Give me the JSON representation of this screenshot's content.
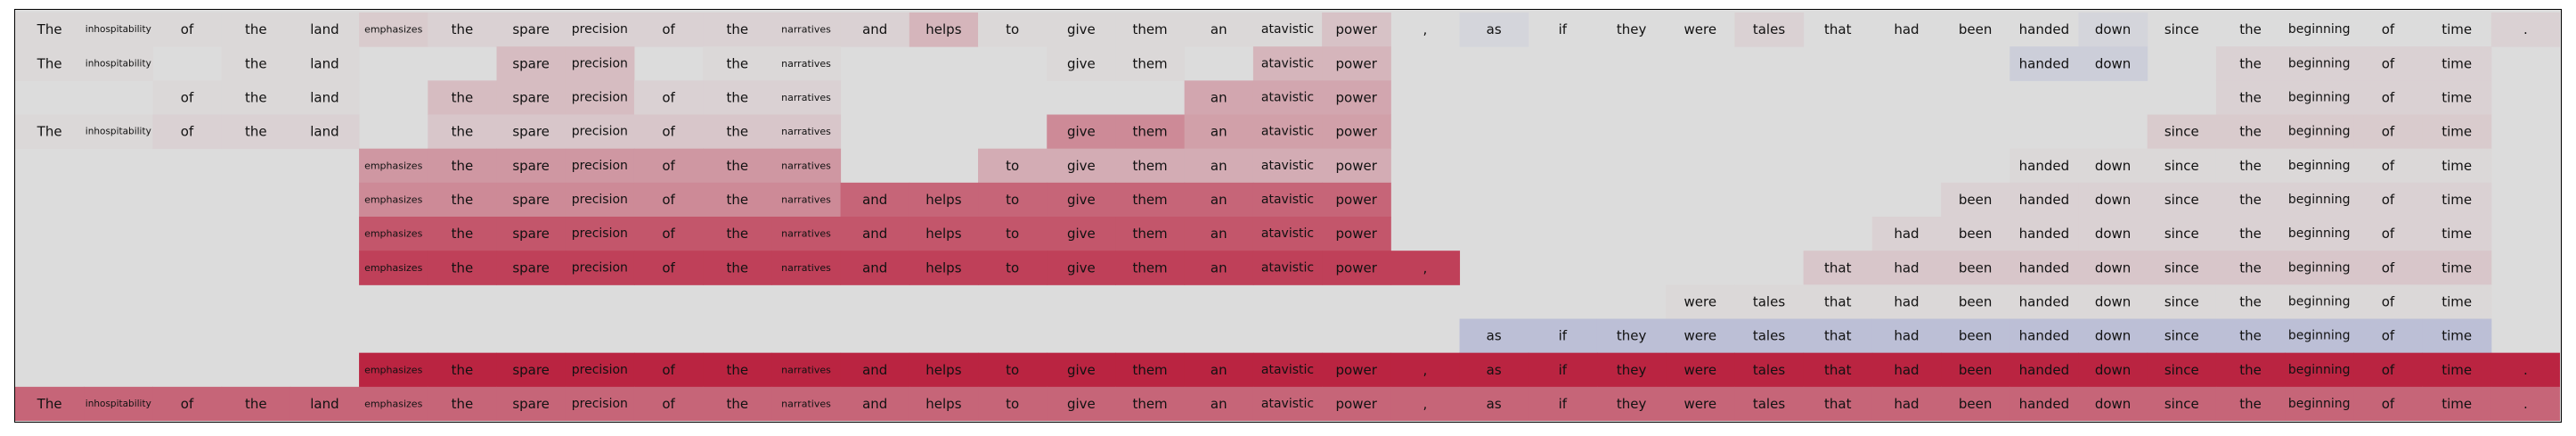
{
  "chart_data": {
    "type": "heatmap",
    "tokens": [
      "The",
      "inhospitability",
      "of",
      "the",
      "land",
      "emphasizes",
      "the",
      "spare",
      "precision",
      "of",
      "the",
      "narratives",
      "and",
      "helps",
      "to",
      "give",
      "them",
      "an",
      "atavistic",
      "power",
      ",",
      "as",
      "if",
      "they",
      "were",
      "tales",
      "that",
      "had",
      "been",
      "handed",
      "down",
      "since",
      "the",
      "beginning",
      "of",
      "time",
      "."
    ],
    "rows": [
      {
        "present": [
          1,
          1,
          1,
          1,
          1,
          1,
          1,
          1,
          1,
          1,
          1,
          1,
          1,
          1,
          1,
          1,
          1,
          1,
          1,
          1,
          1,
          1,
          1,
          1,
          1,
          1,
          1,
          1,
          1,
          1,
          1,
          1,
          1,
          1,
          1,
          1,
          1
        ],
        "values": [
          0.02,
          0.02,
          0.02,
          0.02,
          0.02,
          0.08,
          0.05,
          0.05,
          0.05,
          0.05,
          0.05,
          0.05,
          0.05,
          0.18,
          0.02,
          0.02,
          0.02,
          0.02,
          0.02,
          0.12,
          0,
          -0.05,
          0,
          0,
          0,
          0.05,
          0,
          0,
          0,
          0,
          -0.05,
          0,
          0,
          0,
          0,
          0,
          0.05
        ]
      },
      {
        "present": [
          1,
          1,
          0,
          1,
          1,
          0,
          0,
          1,
          1,
          0,
          1,
          1,
          0,
          0,
          0,
          1,
          1,
          0,
          1,
          1,
          0,
          0,
          0,
          0,
          0,
          0,
          0,
          0,
          0,
          1,
          1,
          0,
          1,
          1,
          1,
          1,
          0
        ],
        "values": [
          0.02,
          0.02,
          0,
          0.02,
          0.02,
          0,
          0,
          0.15,
          0.15,
          0,
          0.02,
          0.02,
          0,
          0,
          0,
          0.02,
          0.02,
          0,
          0.18,
          0.18,
          0,
          0,
          0,
          0,
          0,
          0,
          0,
          0,
          0,
          -0.1,
          -0.1,
          0,
          0.05,
          0.05,
          0.05,
          0.05,
          0
        ]
      },
      {
        "present": [
          0,
          0,
          1,
          1,
          1,
          0,
          1,
          1,
          1,
          1,
          1,
          1,
          0,
          0,
          0,
          0,
          0,
          1,
          1,
          1,
          0,
          0,
          0,
          0,
          0,
          0,
          0,
          0,
          0,
          0,
          0,
          0,
          1,
          1,
          1,
          1,
          0
        ],
        "values": [
          0,
          0,
          0.02,
          0.02,
          0.02,
          0,
          0.15,
          0.15,
          0.15,
          0.05,
          0.05,
          0.05,
          0,
          0,
          0,
          0,
          0,
          0.25,
          0.25,
          0.25,
          0,
          0,
          0,
          0,
          0,
          0,
          0,
          0,
          0,
          0,
          0,
          0,
          0.05,
          0.05,
          0.05,
          0.05,
          0
        ]
      },
      {
        "present": [
          1,
          1,
          1,
          1,
          1,
          0,
          1,
          1,
          1,
          1,
          1,
          1,
          0,
          0,
          0,
          1,
          1,
          1,
          1,
          1,
          0,
          0,
          0,
          0,
          0,
          0,
          0,
          0,
          0,
          0,
          0,
          1,
          1,
          1,
          1,
          1,
          0
        ],
        "values": [
          0.02,
          0.02,
          0.05,
          0.05,
          0.05,
          0,
          0.1,
          0.1,
          0.1,
          0.1,
          0.1,
          0.1,
          0,
          0,
          0,
          0.38,
          0.38,
          0.28,
          0.28,
          0.28,
          0,
          0,
          0,
          0,
          0,
          0,
          0,
          0,
          0,
          0,
          0,
          0.08,
          0.08,
          0.08,
          0.08,
          0.08,
          0
        ]
      },
      {
        "present": [
          0,
          0,
          0,
          0,
          0,
          1,
          1,
          1,
          1,
          1,
          1,
          1,
          0,
          0,
          1,
          1,
          1,
          1,
          1,
          1,
          0,
          0,
          0,
          0,
          0,
          0,
          0,
          0,
          0,
          1,
          1,
          1,
          1,
          1,
          1,
          1,
          0
        ],
        "values": [
          0,
          0,
          0,
          0,
          0,
          0.32,
          0.32,
          0.32,
          0.32,
          0.32,
          0.32,
          0.32,
          0,
          0,
          0.22,
          0.22,
          0.22,
          0.22,
          0.22,
          0.22,
          0,
          0,
          0,
          0,
          0,
          0,
          0,
          0,
          0,
          0.02,
          0.02,
          0.02,
          0.02,
          0.02,
          0.02,
          0.02,
          0
        ]
      },
      {
        "present": [
          0,
          0,
          0,
          0,
          0,
          1,
          1,
          1,
          1,
          1,
          1,
          1,
          1,
          1,
          1,
          1,
          1,
          1,
          1,
          1,
          0,
          0,
          0,
          0,
          0,
          0,
          0,
          0,
          1,
          1,
          1,
          1,
          1,
          1,
          1,
          1,
          0
        ],
        "values": [
          0,
          0,
          0,
          0,
          0,
          0.38,
          0.38,
          0.38,
          0.38,
          0.38,
          0.38,
          0.38,
          0.55,
          0.55,
          0.55,
          0.55,
          0.55,
          0.55,
          0.55,
          0.55,
          0,
          0,
          0,
          0,
          0,
          0,
          0,
          0,
          0.05,
          0.05,
          0.05,
          0.05,
          0.05,
          0.05,
          0.05,
          0.05,
          0
        ]
      },
      {
        "present": [
          0,
          0,
          0,
          0,
          0,
          1,
          1,
          1,
          1,
          1,
          1,
          1,
          1,
          1,
          1,
          1,
          1,
          1,
          1,
          1,
          0,
          0,
          0,
          0,
          0,
          0,
          0,
          1,
          1,
          1,
          1,
          1,
          1,
          1,
          1,
          1,
          0
        ],
        "values": [
          0,
          0,
          0,
          0,
          0,
          0.62,
          0.62,
          0.62,
          0.62,
          0.62,
          0.62,
          0.62,
          0.62,
          0.62,
          0.62,
          0.62,
          0.62,
          0.62,
          0.62,
          0.62,
          0,
          0,
          0,
          0,
          0,
          0,
          0,
          0.05,
          0.05,
          0.05,
          0.05,
          0.05,
          0.05,
          0.05,
          0.05,
          0.05,
          0
        ]
      },
      {
        "present": [
          0,
          0,
          0,
          0,
          0,
          1,
          1,
          1,
          1,
          1,
          1,
          1,
          1,
          1,
          1,
          1,
          1,
          1,
          1,
          1,
          1,
          0,
          0,
          0,
          0,
          0,
          1,
          1,
          1,
          1,
          1,
          1,
          1,
          1,
          1,
          1,
          0
        ],
        "values": [
          0,
          0,
          0,
          0,
          0,
          0.72,
          0.72,
          0.72,
          0.72,
          0.72,
          0.72,
          0.72,
          0.72,
          0.72,
          0.72,
          0.72,
          0.72,
          0.72,
          0.72,
          0.72,
          0.72,
          0,
          0,
          0,
          0,
          0,
          0.1,
          0.1,
          0.1,
          0.1,
          0.1,
          0.1,
          0.1,
          0.1,
          0.1,
          0.1,
          0
        ]
      },
      {
        "present": [
          0,
          0,
          0,
          0,
          0,
          0,
          0,
          0,
          0,
          0,
          0,
          0,
          0,
          0,
          0,
          0,
          0,
          0,
          0,
          0,
          0,
          0,
          0,
          0,
          1,
          1,
          1,
          1,
          1,
          1,
          1,
          1,
          1,
          1,
          1,
          1,
          0
        ],
        "values": [
          0,
          0,
          0,
          0,
          0,
          0,
          0,
          0,
          0,
          0,
          0,
          0,
          0,
          0,
          0,
          0,
          0,
          0,
          0,
          0,
          0,
          0,
          0,
          0,
          0.02,
          0.02,
          0.02,
          0.02,
          0.02,
          0.02,
          0.02,
          0.02,
          0.02,
          0.02,
          0.02,
          0.02,
          0
        ]
      },
      {
        "present": [
          0,
          0,
          0,
          0,
          0,
          0,
          0,
          0,
          0,
          0,
          0,
          0,
          0,
          0,
          0,
          0,
          0,
          0,
          0,
          0,
          0,
          1,
          1,
          1,
          1,
          1,
          1,
          1,
          1,
          1,
          1,
          1,
          1,
          1,
          1,
          1,
          0
        ],
        "values": [
          0,
          0,
          0,
          0,
          0,
          0,
          0,
          0,
          0,
          0,
          0,
          0,
          0,
          0,
          0,
          0,
          0,
          0,
          0,
          0,
          0,
          -0.2,
          -0.2,
          -0.2,
          -0.2,
          -0.2,
          -0.2,
          -0.2,
          -0.2,
          -0.2,
          -0.2,
          -0.2,
          -0.2,
          -0.2,
          -0.2,
          -0.2,
          0
        ]
      },
      {
        "present": [
          0,
          0,
          0,
          0,
          0,
          1,
          1,
          1,
          1,
          1,
          1,
          1,
          1,
          1,
          1,
          1,
          1,
          1,
          1,
          1,
          1,
          1,
          1,
          1,
          1,
          1,
          1,
          1,
          1,
          1,
          1,
          1,
          1,
          1,
          1,
          1,
          1
        ],
        "values": [
          0,
          0,
          0,
          0,
          0,
          0.85,
          0.85,
          0.85,
          0.85,
          0.85,
          0.85,
          0.85,
          0.85,
          0.85,
          0.85,
          0.85,
          0.85,
          0.85,
          0.85,
          0.85,
          0.85,
          0.85,
          0.85,
          0.85,
          0.85,
          0.85,
          0.85,
          0.85,
          0.85,
          0.85,
          0.85,
          0.85,
          0.85,
          0.85,
          0.85,
          0.85,
          0.85
        ]
      },
      {
        "present": [
          1,
          1,
          1,
          1,
          1,
          1,
          1,
          1,
          1,
          1,
          1,
          1,
          1,
          1,
          1,
          1,
          1,
          1,
          1,
          1,
          1,
          1,
          1,
          1,
          1,
          1,
          1,
          1,
          1,
          1,
          1,
          1,
          1,
          1,
          1,
          1,
          1
        ],
        "values": [
          0.55,
          0.55,
          0.55,
          0.55,
          0.55,
          0.55,
          0.55,
          0.55,
          0.55,
          0.55,
          0.55,
          0.55,
          0.55,
          0.55,
          0.55,
          0.55,
          0.55,
          0.55,
          0.55,
          0.55,
          0.55,
          0.55,
          0.55,
          0.55,
          0.55,
          0.55,
          0.55,
          0.55,
          0.55,
          0.55,
          0.55,
          0.55,
          0.55,
          0.55,
          0.55,
          0.55,
          0.55
        ]
      }
    ],
    "value_range": [
      -1,
      1
    ],
    "colormap": {
      "negative": "#3b4cc0",
      "neutral": "#dcdcdc",
      "positive": "#b40426"
    },
    "grid": false,
    "legend": "none"
  }
}
